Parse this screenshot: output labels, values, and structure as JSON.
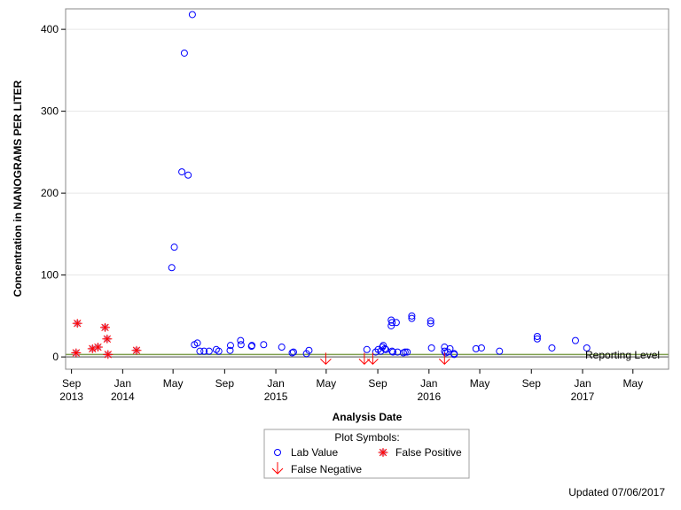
{
  "chart_data": {
    "type": "scatter",
    "xlabel": "Analysis Date",
    "ylabel": "Concentration in NANOGRAMS PER LITER",
    "x_axis": {
      "type": "date",
      "range": [
        "2013-08-18",
        "2017-07-25"
      ],
      "ticks": [
        {
          "date": "2013-09-01",
          "label": "Sep",
          "year": "2013"
        },
        {
          "date": "2014-01-01",
          "label": "Jan",
          "year": "2014"
        },
        {
          "date": "2014-05-01",
          "label": "May",
          "year": ""
        },
        {
          "date": "2014-09-01",
          "label": "Sep",
          "year": ""
        },
        {
          "date": "2015-01-01",
          "label": "Jan",
          "year": "2015"
        },
        {
          "date": "2015-05-01",
          "label": "May",
          "year": ""
        },
        {
          "date": "2015-09-01",
          "label": "Sep",
          "year": ""
        },
        {
          "date": "2016-01-01",
          "label": "Jan",
          "year": "2016"
        },
        {
          "date": "2016-05-01",
          "label": "May",
          "year": ""
        },
        {
          "date": "2016-09-01",
          "label": "Sep",
          "year": ""
        },
        {
          "date": "2017-01-01",
          "label": "Jan",
          "year": "2017"
        },
        {
          "date": "2017-05-01",
          "label": "May",
          "year": ""
        }
      ]
    },
    "y_axis": {
      "range": [
        -15,
        425
      ],
      "ticks": [
        0,
        100,
        200,
        300,
        400
      ],
      "grid": true
    },
    "reference_lines": [
      {
        "label": "Reporting Level",
        "value": 3,
        "color": "#7f9f4f"
      },
      {
        "label": "",
        "value": 0,
        "color": "#888888"
      }
    ],
    "legend": {
      "title": "Plot Symbols:",
      "placement": "bottom",
      "items": [
        {
          "label": "Lab Value",
          "symbol": "circle",
          "color": "#0000ff"
        },
        {
          "label": "False Positive",
          "symbol": "star",
          "color": "#ff0000"
        },
        {
          "label": "False Negative",
          "symbol": "arrow-down",
          "color": "#ff0000"
        }
      ]
    },
    "series": [
      {
        "symbol": "circle",
        "color": "#0000ff",
        "points": [
          {
            "x": "2014-04-28",
            "y": 109
          },
          {
            "x": "2014-05-04",
            "y": 134
          },
          {
            "x": "2014-05-22",
            "y": 226
          },
          {
            "x": "2014-05-28",
            "y": 371
          },
          {
            "x": "2014-06-06",
            "y": 222
          },
          {
            "x": "2014-06-16",
            "y": 418
          },
          {
            "x": "2014-06-21",
            "y": 15
          },
          {
            "x": "2014-06-28",
            "y": 17
          },
          {
            "x": "2014-07-04",
            "y": 7
          },
          {
            "x": "2014-07-14",
            "y": 7
          },
          {
            "x": "2014-07-26",
            "y": 7
          },
          {
            "x": "2014-08-12",
            "y": 9
          },
          {
            "x": "2014-08-18",
            "y": 7
          },
          {
            "x": "2014-09-14",
            "y": 8
          },
          {
            "x": "2014-09-15",
            "y": 14
          },
          {
            "x": "2014-10-09",
            "y": 20
          },
          {
            "x": "2014-10-10",
            "y": 15
          },
          {
            "x": "2014-11-04",
            "y": 13
          },
          {
            "x": "2014-11-05",
            "y": 14
          },
          {
            "x": "2014-12-03",
            "y": 15
          },
          {
            "x": "2015-01-15",
            "y": 12
          },
          {
            "x": "2015-02-09",
            "y": 5
          },
          {
            "x": "2015-02-12",
            "y": 6
          },
          {
            "x": "2015-03-15",
            "y": 4
          },
          {
            "x": "2015-03-21",
            "y": 8
          },
          {
            "x": "2015-08-06",
            "y": 9
          },
          {
            "x": "2015-08-27",
            "y": 6
          },
          {
            "x": "2015-09-02",
            "y": 9
          },
          {
            "x": "2015-09-08",
            "y": 7
          },
          {
            "x": "2015-09-12",
            "y": 12
          },
          {
            "x": "2015-09-14",
            "y": 14
          },
          {
            "x": "2015-09-18",
            "y": 10
          },
          {
            "x": "2015-09-20",
            "y": 9
          },
          {
            "x": "2015-10-03",
            "y": 38
          },
          {
            "x": "2015-10-03",
            "y": 45
          },
          {
            "x": "2015-10-05",
            "y": 42
          },
          {
            "x": "2015-10-05",
            "y": 7
          },
          {
            "x": "2015-10-07",
            "y": 6
          },
          {
            "x": "2015-10-15",
            "y": 42
          },
          {
            "x": "2015-10-18",
            "y": 6
          },
          {
            "x": "2015-11-01",
            "y": 5
          },
          {
            "x": "2015-11-05",
            "y": 6
          },
          {
            "x": "2015-11-10",
            "y": 6
          },
          {
            "x": "2015-11-21",
            "y": 47
          },
          {
            "x": "2015-11-21",
            "y": 50
          },
          {
            "x": "2016-01-05",
            "y": 44
          },
          {
            "x": "2016-01-05",
            "y": 41
          },
          {
            "x": "2016-01-07",
            "y": 11
          },
          {
            "x": "2016-02-07",
            "y": 12
          },
          {
            "x": "2016-02-07",
            "y": 7
          },
          {
            "x": "2016-02-10",
            "y": 5
          },
          {
            "x": "2016-02-15",
            "y": 6
          },
          {
            "x": "2016-02-20",
            "y": 10
          },
          {
            "x": "2016-03-01",
            "y": 4
          },
          {
            "x": "2016-03-01",
            "y": 3
          },
          {
            "x": "2016-04-22",
            "y": 10
          },
          {
            "x": "2016-05-05",
            "y": 11
          },
          {
            "x": "2016-06-17",
            "y": 7
          },
          {
            "x": "2016-09-15",
            "y": 25
          },
          {
            "x": "2016-09-15",
            "y": 22
          },
          {
            "x": "2016-10-20",
            "y": 11
          },
          {
            "x": "2016-12-15",
            "y": 20
          },
          {
            "x": "2017-01-11",
            "y": 11
          }
        ]
      },
      {
        "symbol": "star",
        "color": "#ff0000",
        "points": [
          {
            "x": "2013-09-12",
            "y": 5
          },
          {
            "x": "2013-09-15",
            "y": 41
          },
          {
            "x": "2013-10-21",
            "y": 10
          },
          {
            "x": "2013-11-03",
            "y": 12
          },
          {
            "x": "2013-11-20",
            "y": 36
          },
          {
            "x": "2013-11-25",
            "y": 22
          },
          {
            "x": "2013-11-27",
            "y": 3
          },
          {
            "x": "2014-02-03",
            "y": 8
          }
        ]
      },
      {
        "symbol": "arrow-down",
        "color": "#ff0000",
        "points": [
          {
            "x": "2015-04-30",
            "y": 3
          },
          {
            "x": "2015-07-31",
            "y": 3
          },
          {
            "x": "2015-08-20",
            "y": 3
          },
          {
            "x": "2016-02-07",
            "y": 3
          }
        ]
      }
    ]
  },
  "reporting_level_label": "Reporting Level",
  "footnote": "Updated 07/06/2017"
}
